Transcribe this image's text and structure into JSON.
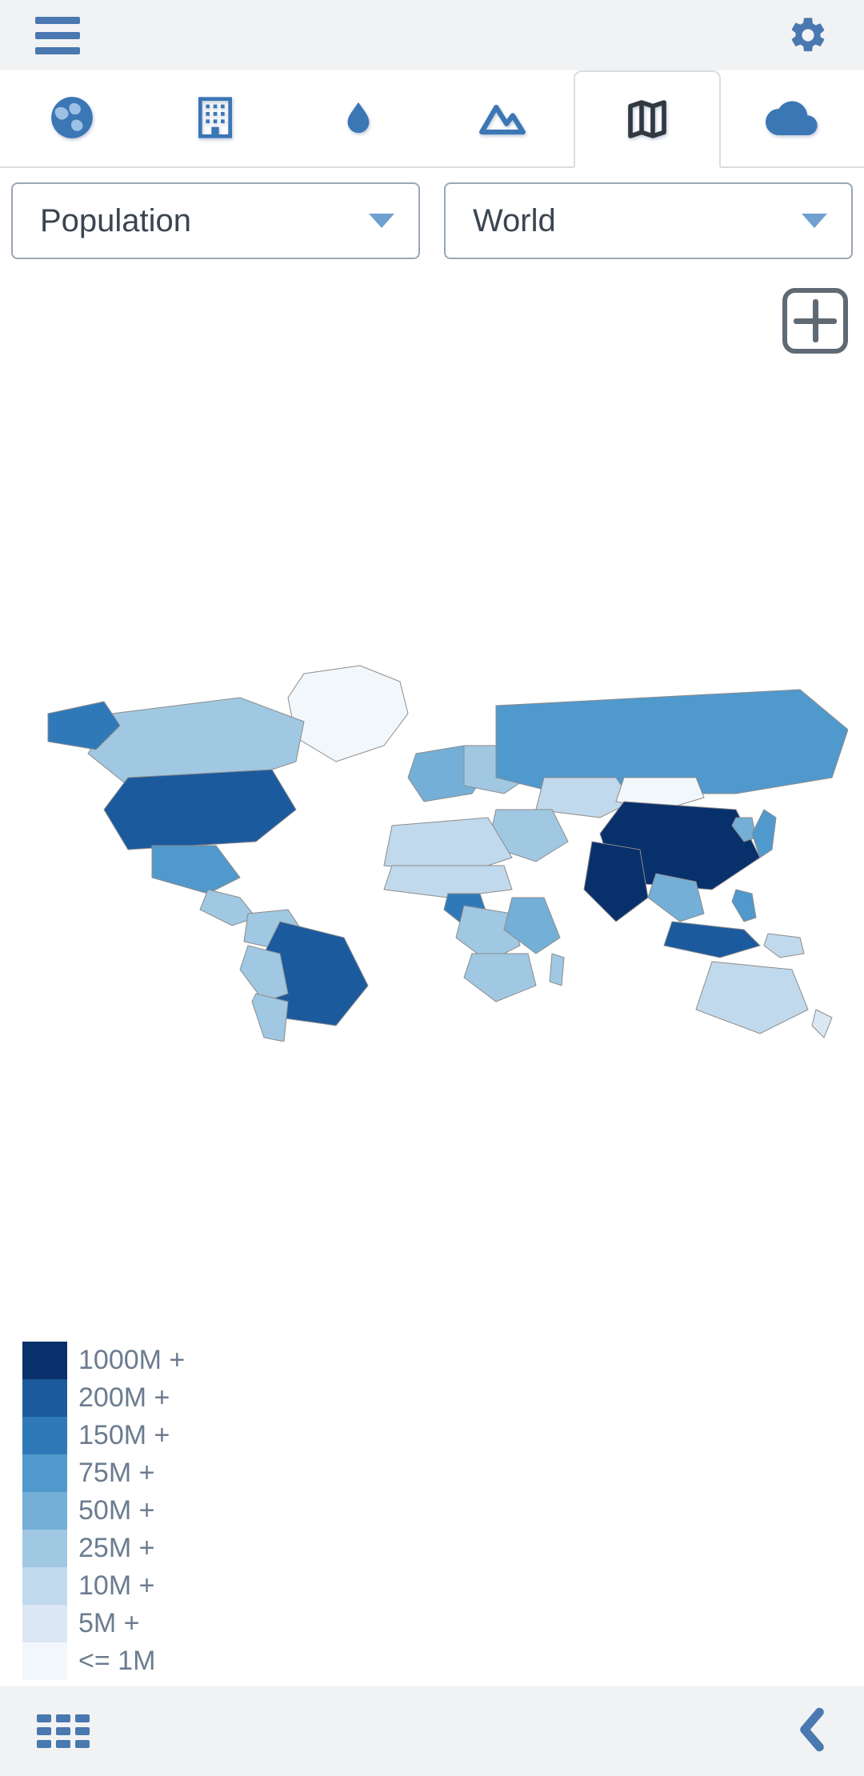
{
  "ui": {
    "accent_color": "#4a78b0",
    "topbar_bg": "#f1f2f3",
    "border_color": "#d9dde1",
    "body_bg": "#ffffff",
    "icon_gray": "#5f6a74"
  },
  "tabs": {
    "items": [
      {
        "id": "globe",
        "semantic": "globe-icon",
        "active": false
      },
      {
        "id": "building",
        "semantic": "building-icon",
        "active": false
      },
      {
        "id": "water",
        "semantic": "water-drop-icon",
        "active": false
      },
      {
        "id": "mountain",
        "semantic": "mountain-icon",
        "active": false
      },
      {
        "id": "map",
        "semantic": "map-icon",
        "active": true
      },
      {
        "id": "cloud",
        "semantic": "cloud-icon",
        "active": false
      }
    ],
    "active_index": 4
  },
  "filters": {
    "metric": {
      "label": "Population"
    },
    "region": {
      "label": "World"
    }
  },
  "map": {
    "type": "choropleth",
    "projection": "equirectangular-simplified",
    "background_color": "#ffffff",
    "country_border_color": "#8c8c8c",
    "regions": [
      {
        "id": "greenland",
        "name": "Greenland",
        "bucket": 8
      },
      {
        "id": "canada",
        "name": "Canada",
        "bucket": 5
      },
      {
        "id": "alaska",
        "name": "Alaska (USA)",
        "bucket": 2
      },
      {
        "id": "usa",
        "name": "United States",
        "bucket": 1
      },
      {
        "id": "mexico",
        "name": "Mexico",
        "bucket": 3
      },
      {
        "id": "c_america",
        "name": "Central America",
        "bucket": 5
      },
      {
        "id": "colven",
        "name": "Colombia/Venezuela",
        "bucket": 5
      },
      {
        "id": "brazil",
        "name": "Brazil",
        "bucket": 1
      },
      {
        "id": "s_cone",
        "name": "Argentina/Chile",
        "bucket": 5
      },
      {
        "id": "peru_bol",
        "name": "Peru/Bolivia",
        "bucket": 5
      },
      {
        "id": "w_europe",
        "name": "Western Europe",
        "bucket": 4
      },
      {
        "id": "e_europe",
        "name": "Eastern Europe",
        "bucket": 5
      },
      {
        "id": "russia",
        "name": "Russia",
        "bucket": 3
      },
      {
        "id": "kazakhstan",
        "name": "Kazakhstan",
        "bucket": 6
      },
      {
        "id": "mongolia",
        "name": "Mongolia",
        "bucket": 8
      },
      {
        "id": "china",
        "name": "China",
        "bucket": 0
      },
      {
        "id": "india",
        "name": "India",
        "bucket": 0
      },
      {
        "id": "se_asia",
        "name": "SE Asia mainland",
        "bucket": 4
      },
      {
        "id": "indonesia",
        "name": "Indonesia",
        "bucket": 1
      },
      {
        "id": "philippines",
        "name": "Philippines",
        "bucket": 3
      },
      {
        "id": "japan",
        "name": "Japan",
        "bucket": 3
      },
      {
        "id": "korea",
        "name": "Korea",
        "bucket": 4
      },
      {
        "id": "mid_east",
        "name": "Middle East",
        "bucket": 5
      },
      {
        "id": "n_africa",
        "name": "North Africa",
        "bucket": 6
      },
      {
        "id": "sahel",
        "name": "Sahel band",
        "bucket": 6
      },
      {
        "id": "nigeria",
        "name": "Nigeria",
        "bucket": 2
      },
      {
        "id": "c_africa",
        "name": "Central Africa",
        "bucket": 5
      },
      {
        "id": "e_africa",
        "name": "East Africa",
        "bucket": 4
      },
      {
        "id": "s_africa_reg",
        "name": "Southern Africa",
        "bucket": 5
      },
      {
        "id": "madagascar",
        "name": "Madagascar",
        "bucket": 5
      },
      {
        "id": "australia",
        "name": "Australia",
        "bucket": 6
      },
      {
        "id": "png",
        "name": "Papua New Guinea",
        "bucket": 6
      },
      {
        "id": "nz",
        "name": "New Zealand",
        "bucket": 7
      }
    ]
  },
  "legend": {
    "label_color": "#6b7c90",
    "label_fontsize": 34,
    "swatch_w": 56,
    "swatch_h": 47,
    "buckets": [
      {
        "color": "#08306b",
        "label": "1000M +"
      },
      {
        "color": "#1c5a9e",
        "label": "200M +"
      },
      {
        "color": "#2f79b8",
        "label": "150M +"
      },
      {
        "color": "#5099cc",
        "label": "75M +"
      },
      {
        "color": "#74afd7",
        "label": "50M +"
      },
      {
        "color": "#a0c8e2",
        "label": "25M +"
      },
      {
        "color": "#c1d9ec",
        "label": "10M +"
      },
      {
        "color": "#dbe8f3",
        "label": "5M +"
      },
      {
        "color": "#f2f7fb",
        "label": "<= 1M"
      }
    ]
  }
}
